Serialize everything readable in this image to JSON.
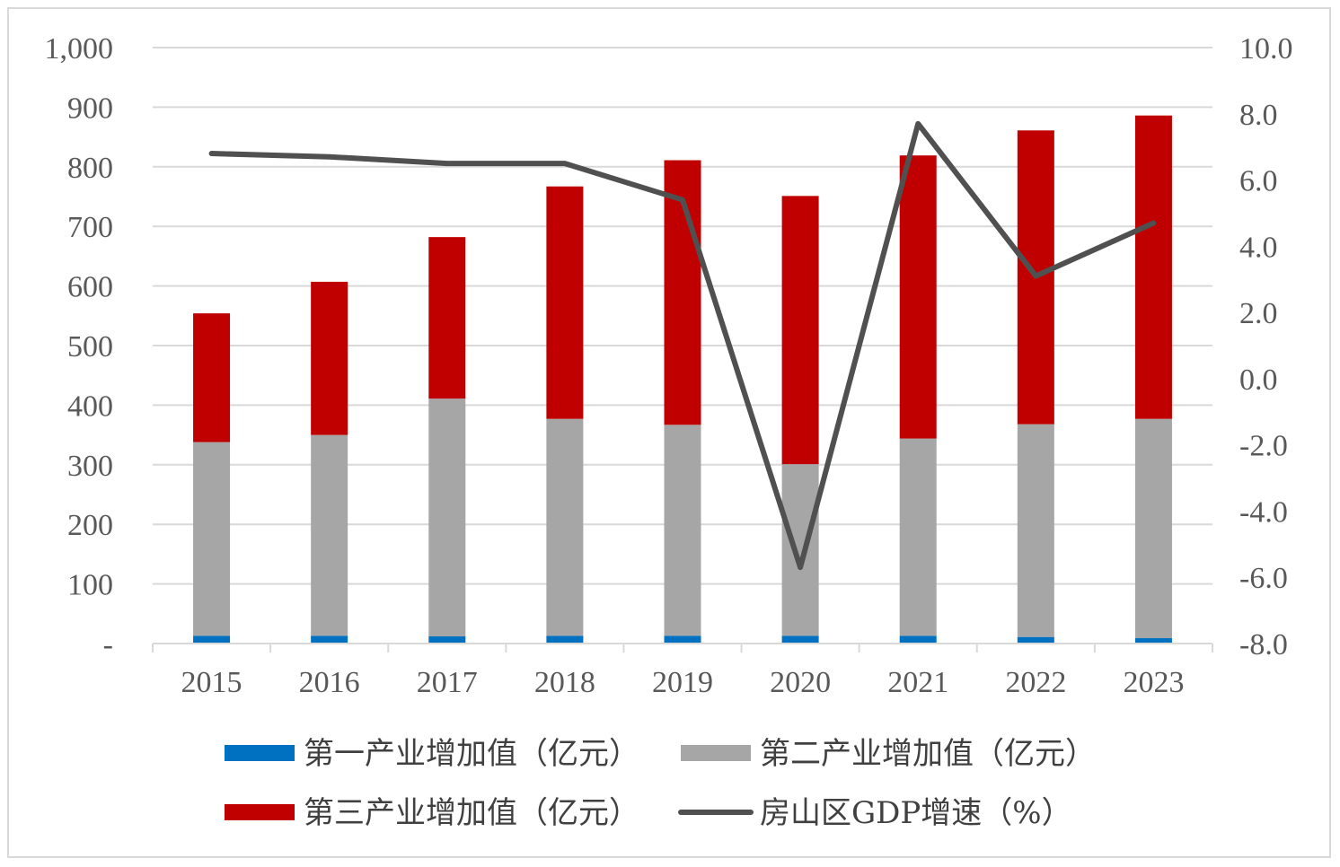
{
  "chart_data": {
    "type": "bar",
    "stacked": true,
    "categories": [
      "2015",
      "2016",
      "2017",
      "2018",
      "2019",
      "2020",
      "2021",
      "2022",
      "2023"
    ],
    "series": [
      {
        "name": "第一产业增加值（亿元）",
        "type": "bar",
        "axis": "left",
        "color": "#0070c0",
        "values": [
          13,
          13,
          12,
          13,
          13,
          13,
          13,
          11,
          9
        ]
      },
      {
        "name": "第二产业增加值（亿元）",
        "type": "bar",
        "axis": "left",
        "color": "#a6a6a6",
        "values": [
          325,
          337,
          399,
          364,
          354,
          288,
          331,
          357,
          368
        ]
      },
      {
        "name": "第三产业增加值（亿元）",
        "type": "bar",
        "axis": "left",
        "color": "#c00000",
        "values": [
          216,
          257,
          271,
          390,
          444,
          450,
          475,
          493,
          509
        ]
      },
      {
        "name": "房山区GDP增速（%）",
        "type": "line",
        "axis": "right",
        "color": "#505050",
        "values": [
          6.8,
          6.7,
          6.5,
          6.5,
          5.4,
          -5.7,
          7.7,
          3.1,
          4.7
        ]
      }
    ],
    "y_left": {
      "min": 0,
      "max": 1000,
      "step": 100,
      "tick_labels": [
        "-",
        "100",
        "200",
        "300",
        "400",
        "500",
        "600",
        "700",
        "800",
        "900",
        "1,000"
      ]
    },
    "y_right": {
      "min": -8,
      "max": 10,
      "step": 2,
      "tick_labels": [
        "-8.0",
        "-6.0",
        "-4.0",
        "-2.0",
        "0.0",
        "2.0",
        "4.0",
        "6.0",
        "8.0",
        "10.0"
      ]
    },
    "grid": true,
    "legend_position": "bottom"
  }
}
